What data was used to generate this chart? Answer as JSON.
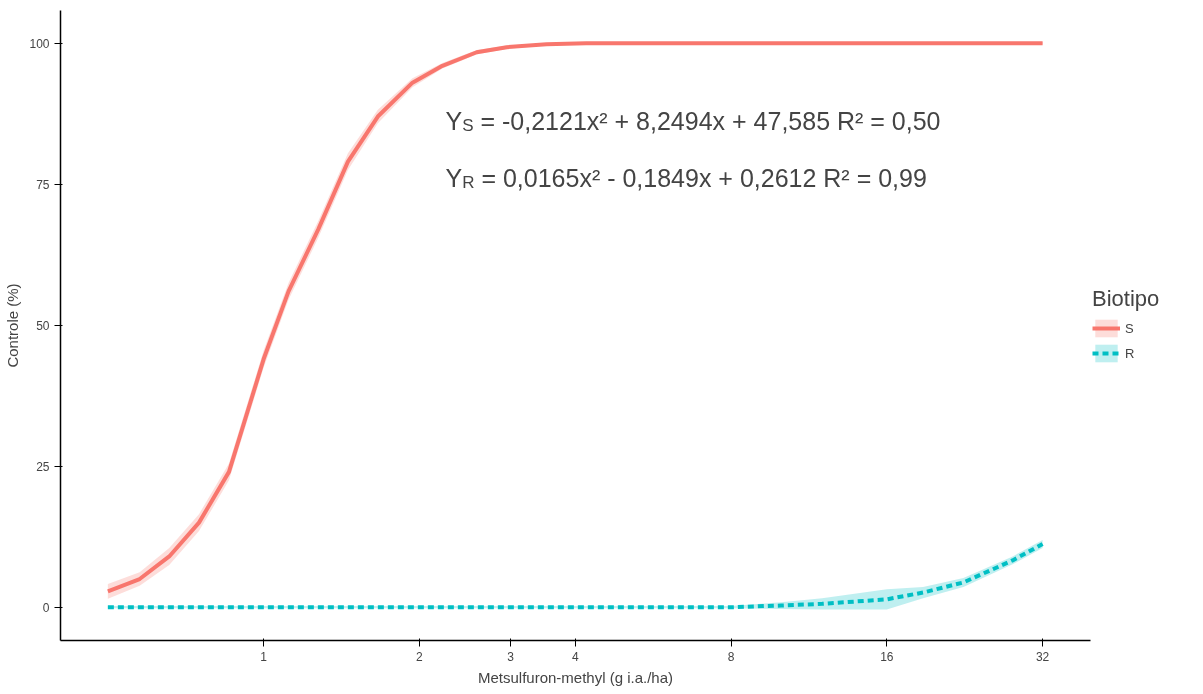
{
  "chart_data": {
    "type": "line",
    "xlabel": "Metsulfuron-methyl (g i.a./ha)",
    "ylabel": "Controle (%)",
    "legend_title": "Biotipo",
    "log": "x",
    "xlim": [
      0.405,
      39.6
    ],
    "xticks": [
      1,
      2,
      3,
      4,
      8,
      16,
      32
    ],
    "ylim": [
      -5.9,
      105.8
    ],
    "yticks": [
      0,
      25,
      50,
      75,
      100
    ],
    "grid": false,
    "legend": "right",
    "annotations": [
      "Y$_{S}$ = -0,2121x² + 8,2494x + 47,585 R² = 0,50",
      "Y$_{R}$ = 0,0165x² - 0,1849x + 0,2612 R² = 0,99"
    ],
    "series": [
      {
        "name": "S",
        "color": "#f8766d",
        "line_style": "solid",
        "x": [
          0.5,
          0.576,
          0.657,
          0.75,
          0.857,
          1,
          1.117,
          1.275,
          1.455,
          1.662,
          1.939,
          2.215,
          2.58,
          2.95,
          3.52,
          4.2,
          6.5,
          32
        ],
        "values": [
          2.8,
          5,
          9,
          15,
          24,
          44,
          56,
          67,
          79,
          87,
          93,
          96,
          98.4,
          99.3,
          99.8,
          100,
          100,
          100
        ],
        "lower": [
          1.5,
          3.8,
          7.5,
          13.5,
          22.5,
          42.5,
          54.5,
          65.5,
          77.5,
          85.8,
          92.2,
          95.5,
          98,
          99,
          99.6,
          99.8,
          99.8,
          99.8
        ],
        "upper": [
          4.1,
          6.2,
          10.5,
          16.5,
          25.5,
          45.5,
          57.5,
          68.5,
          80.5,
          88.2,
          93.8,
          96.5,
          98.8,
          99.6,
          100,
          100.2,
          100.2,
          100.2
        ]
      },
      {
        "name": "R",
        "color": "#00bfc4",
        "line_style": "dashed",
        "x": [
          0.5,
          8,
          10,
          12,
          16,
          18.8,
          22.5,
          28,
          32
        ],
        "values": [
          0,
          0,
          0.3,
          0.6,
          1.4,
          2.6,
          4.4,
          8.3,
          11.2
        ],
        "lower": [
          -0.2,
          -0.2,
          -0.3,
          -0.4,
          -0.4,
          1.6,
          3.6,
          7.6,
          10.5
        ],
        "upper": [
          0.2,
          0.2,
          0.9,
          1.6,
          3.2,
          3.6,
          5.2,
          9,
          11.9
        ]
      }
    ]
  }
}
